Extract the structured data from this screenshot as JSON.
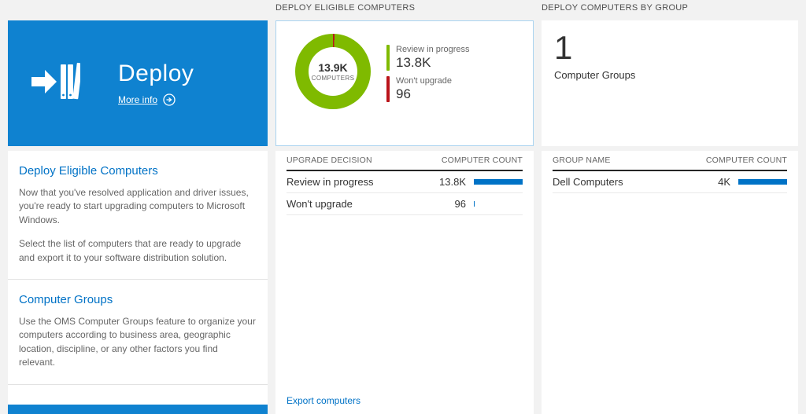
{
  "colors": {
    "tile_blue": "#0f82d0",
    "accent_blue": "#0072c6",
    "green": "#7fba00",
    "red": "#ba141a",
    "bar_blue": "#0072c6"
  },
  "left_panel": {
    "tile": {
      "title": "Deploy",
      "more_info_label": "More info"
    },
    "sections": [
      {
        "heading": "Deploy Eligible Computers",
        "paragraphs": [
          "Now that you've resolved application and driver issues, you're ready to start upgrading computers to Microsoft Windows.",
          "Select the list of computers that are ready to upgrade and export it to your software distribution solution."
        ]
      },
      {
        "heading": "Computer Groups",
        "paragraphs": [
          "Use the OMS Computer Groups feature to organize your computers according to business area, geographic location, discipline, or any other factors you find relevant."
        ]
      }
    ]
  },
  "middle_panel": {
    "header": "DEPLOY ELIGIBLE COMPUTERS",
    "donut": {
      "center_value": "13.9K",
      "center_label": "COMPUTERS",
      "segments": [
        {
          "color": "#ba141a",
          "pct": 0.7
        },
        {
          "color": "#7fba00",
          "pct": 99.3
        }
      ],
      "legend": [
        {
          "label": "Review in progress",
          "value": "13.8K",
          "color": "#7fba00"
        },
        {
          "label": "Won't upgrade",
          "value": "96",
          "color": "#ba141a"
        }
      ]
    },
    "table": {
      "col1": "UPGRADE DECISION",
      "col2": "COMPUTER COUNT",
      "rows": [
        {
          "label": "Review in progress",
          "value": "13.8K",
          "bar_pct": 100
        },
        {
          "label": "Won't upgrade",
          "value": "96",
          "bar_pct": 2
        }
      ]
    },
    "export_link": "Export computers"
  },
  "right_panel": {
    "header": "DEPLOY COMPUTERS BY GROUP",
    "tile": {
      "count": "1",
      "label": "Computer Groups"
    },
    "table": {
      "col1": "GROUP NAME",
      "col2": "COMPUTER COUNT",
      "rows": [
        {
          "label": "Dell Computers",
          "value": "4K",
          "bar_pct": 100
        }
      ]
    }
  }
}
